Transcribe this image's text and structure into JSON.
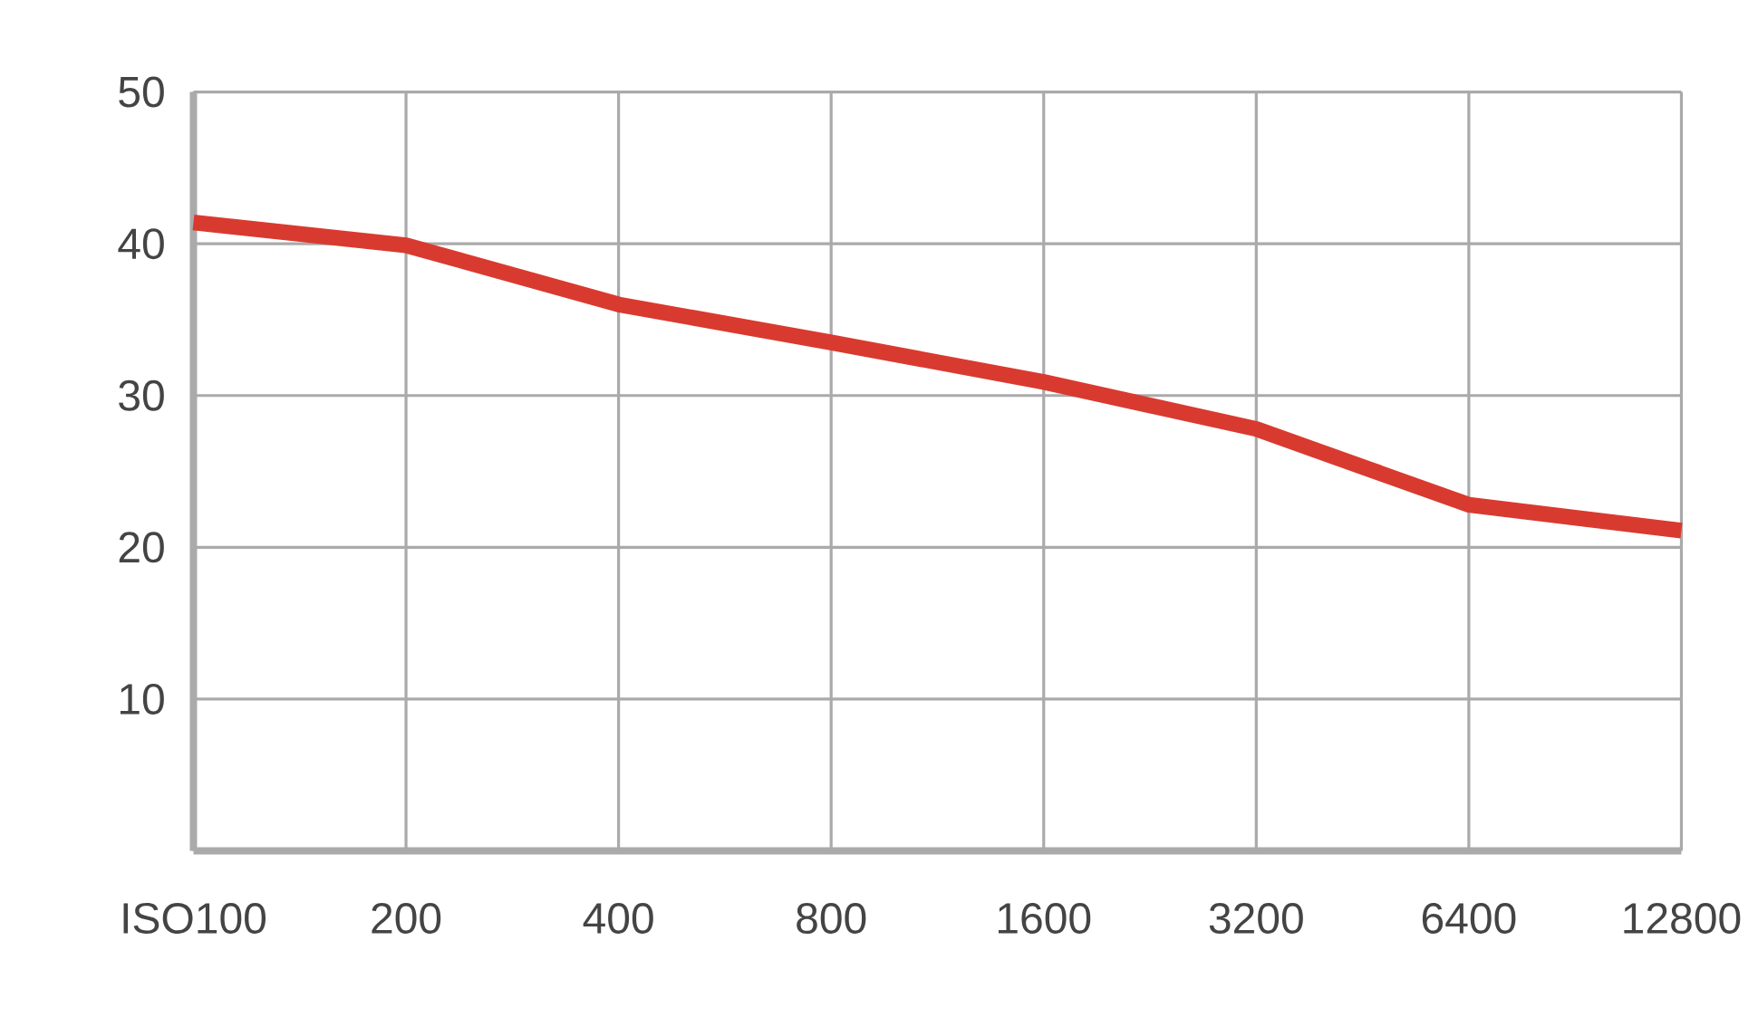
{
  "chart_data": {
    "type": "line",
    "categories": [
      "ISO100",
      "200",
      "400",
      "800",
      "1600",
      "3200",
      "6400",
      "12800"
    ],
    "series": [
      {
        "color": "#d93a2f",
        "values": [
          41.4,
          39.9,
          36.0,
          33.5,
          30.9,
          27.8,
          22.8,
          21.1
        ]
      }
    ],
    "ylim": [
      0,
      50
    ],
    "yticks": [
      10,
      20,
      30,
      40,
      50
    ],
    "grid": true,
    "marker": "none",
    "line_style": "solid"
  }
}
